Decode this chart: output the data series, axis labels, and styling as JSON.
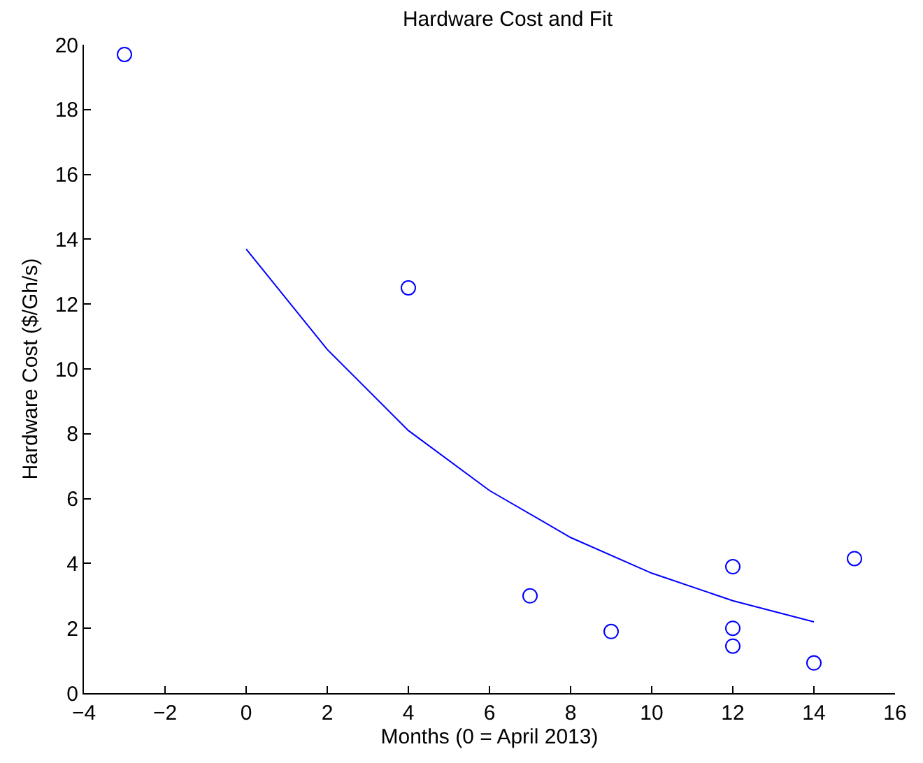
{
  "chart_data": {
    "type": "scatter",
    "title": "Hardware Cost and Fit",
    "xlabel": "Months (0 = April 2013)",
    "ylabel": "Hardware Cost ($/Gh/s)",
    "xlim": [
      -4,
      16
    ],
    "xticks": [
      {
        "value": -4,
        "label": "−4"
      },
      {
        "value": -2,
        "label": "−2"
      },
      0,
      2,
      4,
      6,
      8,
      10,
      12,
      14,
      16
    ],
    "ylim": [
      0,
      20
    ],
    "yticks": [
      0,
      2,
      4,
      6,
      8,
      10,
      12,
      14,
      16,
      18,
      20
    ],
    "series": [
      {
        "marker": "circle",
        "color": "#0000ff",
        "x": [
          -3,
          4,
          7,
          9,
          12,
          12,
          12,
          14,
          15
        ],
        "values": [
          19.7,
          12.5,
          3.0,
          1.9,
          3.9,
          2.0,
          1.45,
          0.93,
          4.15
        ]
      },
      {
        "type": "line",
        "marker": "none",
        "line_style": "solid",
        "color": "#0000ff",
        "x": [
          0,
          2,
          4,
          6,
          8,
          10,
          12,
          14
        ],
        "values": [
          13.7,
          10.6,
          8.1,
          6.25,
          4.8,
          3.7,
          2.85,
          2.2
        ]
      }
    ]
  }
}
